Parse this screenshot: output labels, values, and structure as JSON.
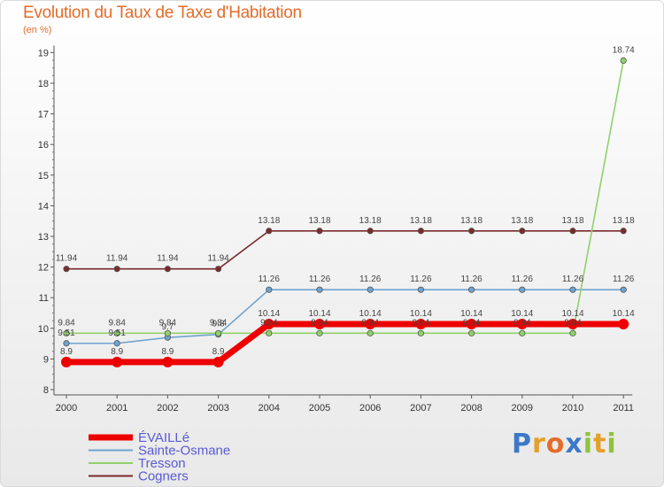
{
  "chart_data": {
    "type": "line",
    "title": "Evolution du Taux de Taxe d'Habitation",
    "subtitle": "(en %)",
    "xlabel": "",
    "ylabel": "",
    "ylim": [
      8,
      19
    ],
    "yticks": [
      8,
      9,
      10,
      11,
      12,
      13,
      14,
      15,
      16,
      17,
      18,
      19
    ],
    "x": [
      "2000",
      "2001",
      "2002",
      "2003",
      "2004",
      "2005",
      "2006",
      "2007",
      "2008",
      "2009",
      "2010",
      "2011"
    ],
    "grid": false,
    "legend_position": "bottom-left",
    "series": [
      {
        "name": "Cogners",
        "color": "#7a2a2a",
        "values": [
          11.94,
          11.94,
          11.94,
          11.94,
          13.18,
          13.18,
          13.18,
          13.18,
          13.18,
          13.18,
          13.18,
          13.18
        ],
        "labels": [
          "11.94",
          "11.94",
          "11.94",
          "11.94",
          "13.18",
          "13.18",
          "13.18",
          "13.18",
          "13.18",
          "13.18",
          "13.18",
          "13.18"
        ]
      },
      {
        "name": "Sainte-Osmane",
        "color": "#6fa3cf",
        "values": [
          9.51,
          9.51,
          9.7,
          9.8,
          11.26,
          11.26,
          11.26,
          11.26,
          11.26,
          11.26,
          11.26,
          11.26
        ],
        "labels": [
          "9.51",
          "9.51",
          "9.7",
          "9.8",
          "11.26",
          "11.26",
          "11.26",
          "11.26",
          "11.26",
          "11.26",
          "11.26",
          "11.26"
        ]
      },
      {
        "name": "Tresson",
        "color": "#8fd16a",
        "values": [
          9.84,
          9.84,
          9.84,
          9.84,
          9.84,
          9.84,
          9.84,
          9.84,
          9.84,
          9.84,
          9.84,
          18.74
        ],
        "labels": [
          "9.84",
          "9.84",
          "9.84",
          "9.84",
          "9.84",
          "9.84",
          "9.84",
          "9.84",
          "9.84",
          "9.84",
          "9.84",
          "18.74"
        ]
      },
      {
        "name": "ÉVAILLé",
        "color": "#ee0000",
        "values": [
          8.9,
          8.9,
          8.9,
          8.9,
          10.14,
          10.14,
          10.14,
          10.14,
          10.14,
          10.14,
          10.14,
          10.14
        ],
        "labels": [
          "8.9",
          "8.9",
          "8.9",
          "8.9",
          "10.14",
          "10.14",
          "10.14",
          "10.14",
          "10.14",
          "10.14",
          "10.14",
          "10.14"
        ]
      }
    ]
  },
  "legend": {
    "items": [
      "ÉVAILLé",
      "Sainte-Osmane",
      "Tresson",
      "Cogners"
    ]
  },
  "logo": {
    "letters": [
      "P",
      "r",
      "o",
      "x",
      "i",
      "t",
      "i"
    ],
    "colors": [
      "#3c78c8",
      "#e4a02a",
      "#e46c2a",
      "#3c78c8",
      "#8fc33a",
      "#e4a02a",
      "#8fc33a"
    ]
  }
}
